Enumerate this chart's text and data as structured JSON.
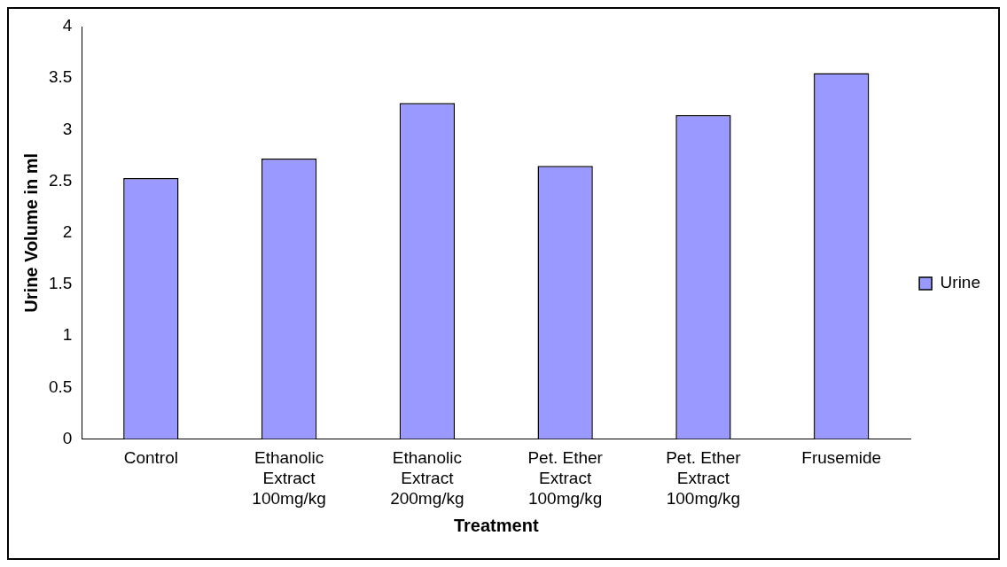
{
  "chart_data": {
    "type": "bar",
    "xlabel": "Treatment",
    "ylabel": "Urine Volume in ml",
    "categories": [
      "Control",
      "Ethanolic Extract 100mg/kg",
      "Ethanolic Extract 200mg/kg",
      "Pet. Ether Extract 100mg/kg",
      "Pet. Ether Extract 100mg/kg",
      "Frusemide"
    ],
    "series": [
      {
        "name": "Urine",
        "color": "#9999ff",
        "values": [
          2.53,
          2.72,
          3.26,
          2.65,
          3.14,
          3.55
        ]
      }
    ],
    "ylim": [
      0,
      4
    ],
    "yticks": [
      0,
      0.5,
      1,
      1.5,
      2,
      2.5,
      3,
      3.5,
      4
    ],
    "grid": false,
    "legend": "right"
  }
}
